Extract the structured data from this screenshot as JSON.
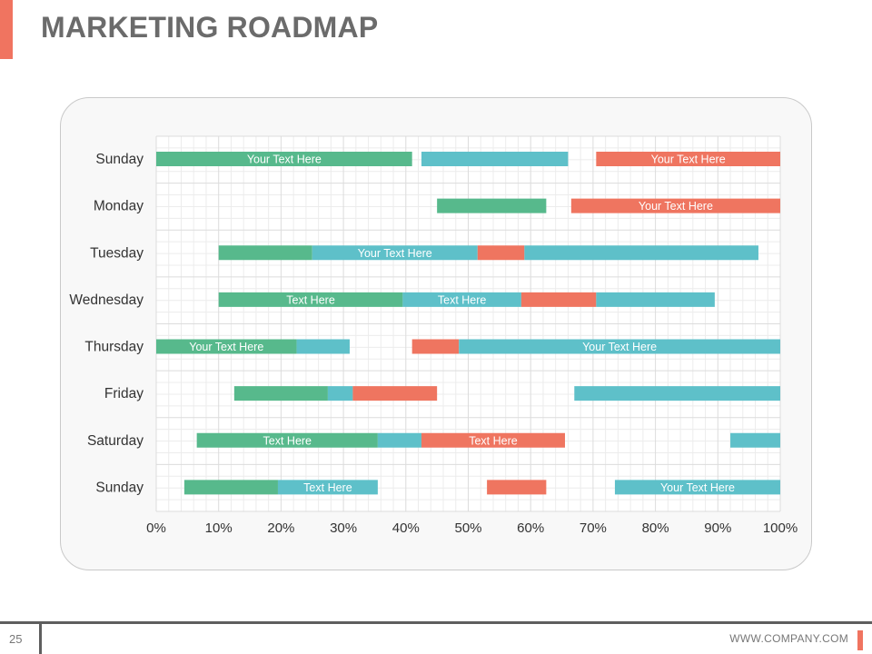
{
  "slide": {
    "title": "MARKETING ROADMAP",
    "page_number": "25",
    "company_url": "WWW.COMPANY.COM"
  },
  "colors": {
    "green": "#57b98c",
    "teal": "#5ec0c9",
    "coral": "#ef7560",
    "accent": "#f07460",
    "grid": "#dcdcdc",
    "grid_minor": "#ececec",
    "label": "#333333"
  },
  "chart_data": {
    "type": "bar",
    "orientation": "horizontal",
    "stacked": false,
    "xlim": [
      0,
      100
    ],
    "x_ticks": [
      "0%",
      "10%",
      "20%",
      "30%",
      "40%",
      "50%",
      "60%",
      "70%",
      "80%",
      "90%",
      "100%"
    ],
    "grid": true,
    "categories": [
      "Sunday",
      "Monday",
      "Tuesday",
      "Wednesday",
      "Thursday",
      "Friday",
      "Saturday",
      "Sunday"
    ],
    "rows": [
      {
        "label": "Sunday",
        "segments": [
          {
            "start": 0,
            "end": 41,
            "color": "green",
            "text": "Your Text Here"
          },
          {
            "start": 42.5,
            "end": 66,
            "color": "teal",
            "text": ""
          },
          {
            "start": 70.5,
            "end": 100,
            "color": "coral",
            "text": "Your Text Here"
          }
        ]
      },
      {
        "label": "Monday",
        "segments": [
          {
            "start": 45,
            "end": 62.5,
            "color": "green",
            "text": ""
          },
          {
            "start": 66.5,
            "end": 100,
            "color": "coral",
            "text": "Your Text Here"
          }
        ]
      },
      {
        "label": "Tuesday",
        "segments": [
          {
            "start": 10,
            "end": 25,
            "color": "green",
            "text": ""
          },
          {
            "start": 25,
            "end": 51.5,
            "color": "teal",
            "text": "Your Text Here"
          },
          {
            "start": 51.5,
            "end": 59,
            "color": "coral",
            "text": ""
          },
          {
            "start": 59,
            "end": 96.5,
            "color": "teal",
            "text": ""
          }
        ]
      },
      {
        "label": "Wednesday",
        "segments": [
          {
            "start": 10,
            "end": 39.5,
            "color": "green",
            "text": "Text Here"
          },
          {
            "start": 39.5,
            "end": 58.5,
            "color": "teal",
            "text": "Text Here"
          },
          {
            "start": 58.5,
            "end": 70.5,
            "color": "coral",
            "text": ""
          },
          {
            "start": 70.5,
            "end": 89.5,
            "color": "teal",
            "text": ""
          }
        ]
      },
      {
        "label": "Thursday",
        "segments": [
          {
            "start": 0,
            "end": 22.5,
            "color": "green",
            "text": "Your Text Here"
          },
          {
            "start": 22.5,
            "end": 31,
            "color": "teal",
            "text": ""
          },
          {
            "start": 41,
            "end": 48.5,
            "color": "coral",
            "text": ""
          },
          {
            "start": 48.5,
            "end": 100,
            "color": "teal",
            "text": "Your Text Here"
          }
        ]
      },
      {
        "label": "Friday",
        "segments": [
          {
            "start": 12.5,
            "end": 27.5,
            "color": "green",
            "text": ""
          },
          {
            "start": 27.5,
            "end": 31.5,
            "color": "teal",
            "text": ""
          },
          {
            "start": 31.5,
            "end": 45,
            "color": "coral",
            "text": ""
          },
          {
            "start": 67,
            "end": 100,
            "color": "teal",
            "text": ""
          }
        ]
      },
      {
        "label": "Saturday",
        "segments": [
          {
            "start": 6.5,
            "end": 35.5,
            "color": "green",
            "text": "Text Here"
          },
          {
            "start": 35.5,
            "end": 42.5,
            "color": "teal",
            "text": ""
          },
          {
            "start": 42.5,
            "end": 65.5,
            "color": "coral",
            "text": "Text Here"
          },
          {
            "start": 92,
            "end": 100,
            "color": "teal",
            "text": ""
          }
        ]
      },
      {
        "label": "Sunday",
        "segments": [
          {
            "start": 4.5,
            "end": 19.5,
            "color": "green",
            "text": ""
          },
          {
            "start": 19.5,
            "end": 35.5,
            "color": "teal",
            "text": "Text Here"
          },
          {
            "start": 53,
            "end": 62.5,
            "color": "coral",
            "text": ""
          },
          {
            "start": 73.5,
            "end": 100,
            "color": "teal",
            "text": "Your Text Here"
          }
        ]
      }
    ]
  }
}
